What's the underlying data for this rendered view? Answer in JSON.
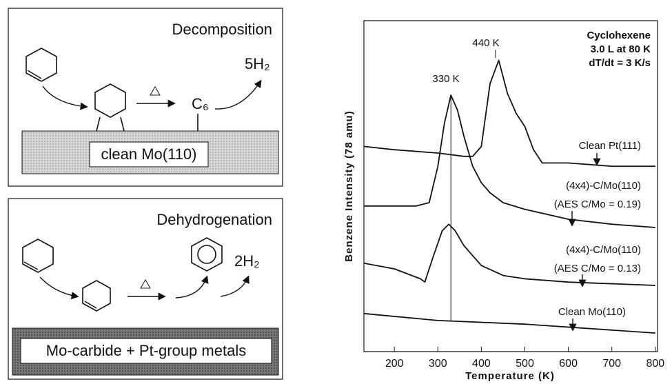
{
  "schemes": [
    {
      "title": "Decomposition",
      "surface": "clean Mo(110)",
      "intermediate": "C₆",
      "product": "5H₂"
    },
    {
      "title": "Dehydrogenation",
      "surface": "Mo-carbide + Pt-group metals",
      "product": "2H₂"
    }
  ],
  "chart_data": {
    "type": "line",
    "x_label": "Temperature (K)",
    "y_label": "Benzene Intensity (78 amu)",
    "annotations": [
      "330 K",
      "440 K",
      "Cyclohexene",
      "3.0 L at 80 K",
      "dT/dt = 3 K/s"
    ],
    "xlim": [
      130,
      805
    ],
    "xticks": [
      200,
      300,
      400,
      500,
      600,
      700,
      800
    ],
    "ylim": [
      0,
      100
    ],
    "series": [
      {
        "name": "Clean Pt(111)",
        "color": "#111111",
        "x": [
          130,
          200,
          300,
          360,
          380,
          400,
          420,
          440,
          460,
          480,
          500,
          520,
          540,
          560,
          600,
          700,
          800
        ],
        "values": [
          62,
          61,
          60,
          59,
          59,
          62,
          81,
          88,
          78,
          72,
          68,
          61,
          57,
          57,
          57,
          56,
          56
        ]
      },
      {
        "name": "(4x4)-C/Mo(110)",
        "note": "(AES C/Mo = 0.19)",
        "color": "#111111",
        "x": [
          130,
          250,
          280,
          300,
          315,
          330,
          345,
          360,
          380,
          400,
          420,
          450,
          500,
          600,
          700,
          800
        ],
        "values": [
          44,
          44,
          45,
          56,
          69,
          77.5,
          73,
          65,
          56,
          51,
          48,
          45,
          43,
          40,
          38.5,
          37.5
        ]
      },
      {
        "name": "(4x4)-C/Mo(110)",
        "note": "(AES C/Mo = 0.13)",
        "color": "#111111",
        "x": [
          130,
          200,
          260,
          270,
          290,
          310,
          325,
          340,
          360,
          380,
          400,
          450,
          500,
          600,
          800
        ],
        "values": [
          26.7,
          25,
          22,
          21,
          29,
          36.5,
          38.5,
          36.5,
          32,
          29,
          26,
          23,
          22,
          21,
          20
        ]
      },
      {
        "name": "Clean Mo(110)",
        "color": "#111111",
        "x": [
          130,
          300,
          500,
          800
        ],
        "values": [
          11.5,
          9.4,
          8.3,
          5.6
        ]
      }
    ],
    "peak_line_x": 330
  }
}
